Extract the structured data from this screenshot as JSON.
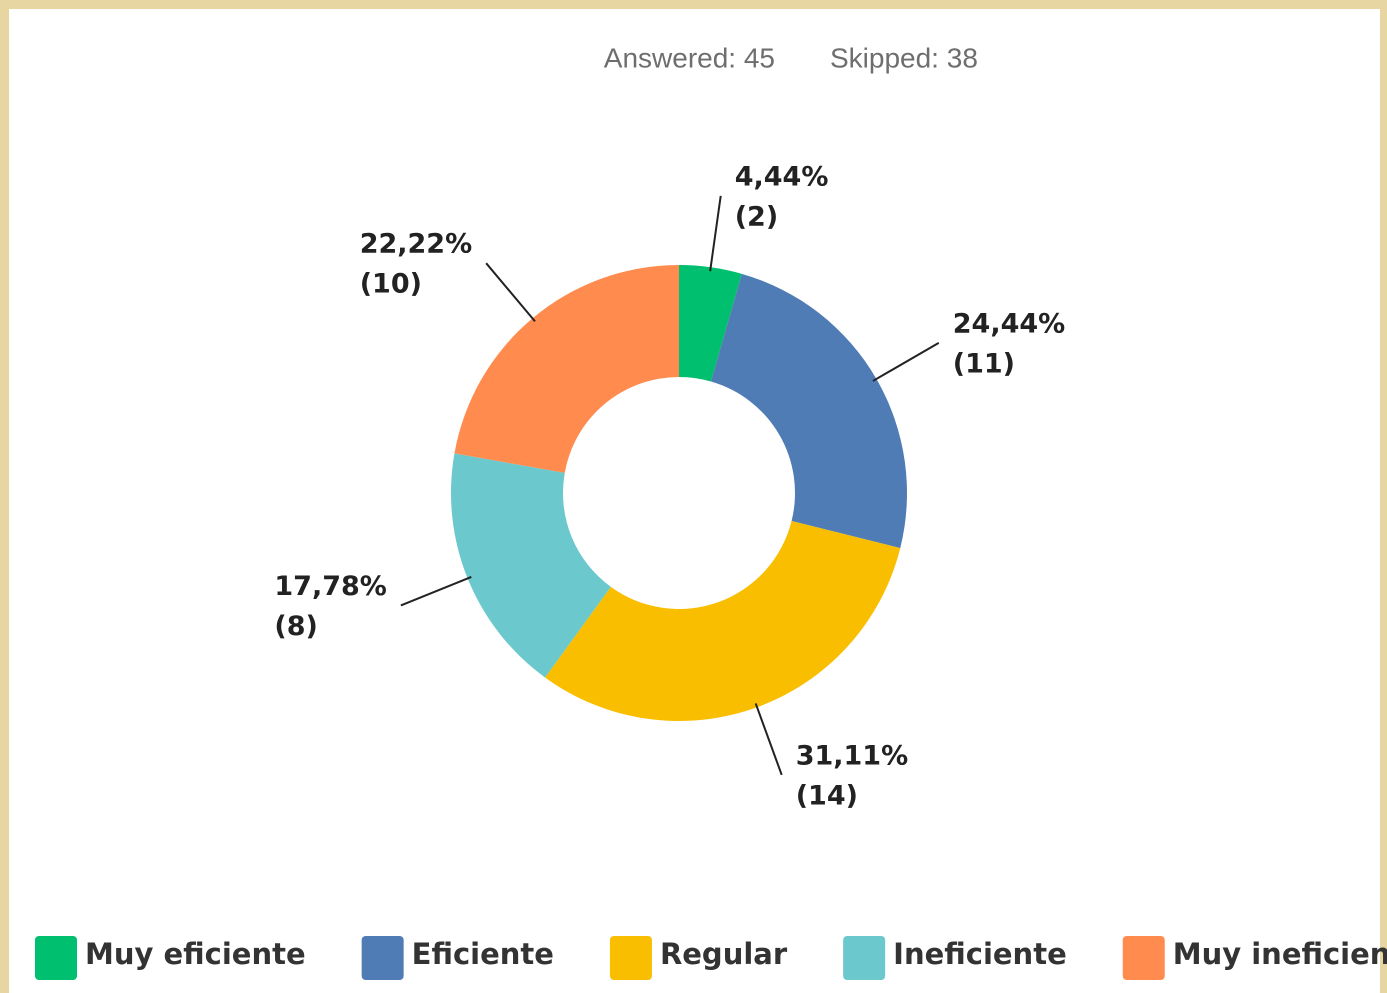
{
  "chart_data": {
    "type": "donut",
    "answered_label": "Answered: 45",
    "skipped_label": "Skipped: 38",
    "categories": [
      "Muy eficiente",
      "Eficiente",
      "Regular",
      "Ineficiente",
      "Muy ineficiente"
    ],
    "values": [
      4.44,
      24.44,
      31.11,
      17.78,
      22.22
    ],
    "value_labels": [
      "4,44%",
      "24,44%",
      "31,11%",
      "17,78%",
      "22,22%"
    ],
    "counts": [
      2,
      11,
      14,
      8,
      10
    ],
    "count_labels": [
      "(2)",
      "(11)",
      "(14)",
      "(8)",
      "(10)"
    ],
    "colors": [
      "#00bf6f",
      "#507cb6",
      "#f9be00",
      "#6bc8cd",
      "#ff8b4f"
    ],
    "legend": "bottom"
  }
}
